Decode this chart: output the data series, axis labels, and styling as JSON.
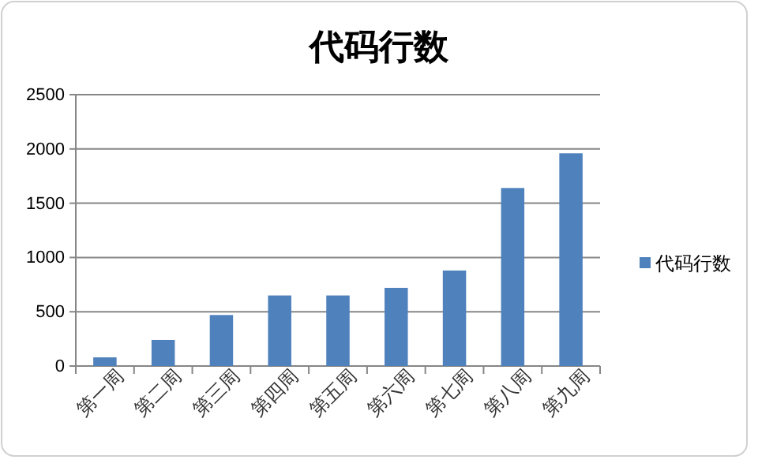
{
  "chart_data": {
    "type": "bar",
    "title": "代码行数",
    "categories": [
      "第一周",
      "第二周",
      "第三周",
      "第四周",
      "第五周",
      "第六周",
      "第七周",
      "第八周",
      "第九周"
    ],
    "series": [
      {
        "name": "代码行数",
        "color": "#4f81bd",
        "values": [
          80,
          240,
          470,
          650,
          650,
          720,
          880,
          1640,
          1960
        ]
      }
    ],
    "ylim": [
      0,
      2500
    ],
    "yticks": [
      0,
      500,
      1000,
      1500,
      2000,
      2500
    ],
    "grid": "y",
    "legend": "right"
  }
}
